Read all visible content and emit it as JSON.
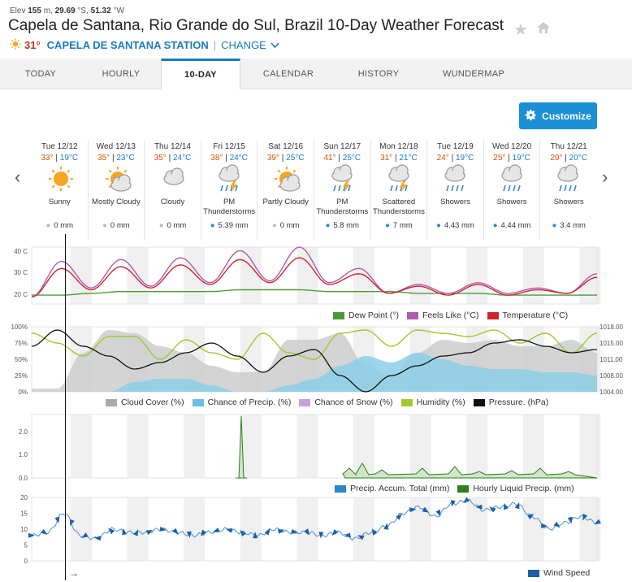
{
  "header": {
    "elev_prefix": "Elev",
    "elev_value": "155",
    "elev_unit": "m,",
    "lat": "29.69",
    "lat_unit": "°S,",
    "lon": "51.32",
    "lon_unit": "°W",
    "title": "Capela de Santana, Rio Grande do Sul, Brazil 10-Day Weather Forecast",
    "current_temp": "31°",
    "station": "Capela de Santana Station",
    "separator": "|",
    "change": "Change"
  },
  "tabs": [
    {
      "label": "Today"
    },
    {
      "label": "Hourly"
    },
    {
      "label": "10-Day"
    },
    {
      "label": "Calendar"
    },
    {
      "label": "History"
    },
    {
      "label": "Wundermap"
    }
  ],
  "customize_label": "Customize",
  "days": [
    {
      "name": "Tue 12/12",
      "hi": "33°",
      "lo": "19°C",
      "cond": "Sunny",
      "precip": "0 mm",
      "icon": "sun"
    },
    {
      "name": "Wed 12/13",
      "hi": "35°",
      "lo": "23°C",
      "cond": "Mostly Cloudy",
      "precip": "0 mm",
      "icon": "partly"
    },
    {
      "name": "Thu 12/14",
      "hi": "35°",
      "lo": "24°C",
      "cond": "Cloudy",
      "precip": "0 mm",
      "icon": "cloud"
    },
    {
      "name": "Fri 12/15",
      "hi": "38°",
      "lo": "24°C",
      "cond": "PM Thunderstorms",
      "precip": "5.39 mm",
      "icon": "storm"
    },
    {
      "name": "Sat 12/16",
      "hi": "39°",
      "lo": "25°C",
      "cond": "Partly Cloudy",
      "precip": "0 mm",
      "icon": "partly"
    },
    {
      "name": "Sun 12/17",
      "hi": "41°",
      "lo": "25°C",
      "cond": "PM Thunderstorms",
      "precip": "5.8 mm",
      "icon": "storm"
    },
    {
      "name": "Mon 12/18",
      "hi": "31°",
      "lo": "21°C",
      "cond": "Scattered Thunderstorms",
      "precip": "7 mm",
      "icon": "storm"
    },
    {
      "name": "Tue 12/19",
      "hi": "24°",
      "lo": "19°C",
      "cond": "Showers",
      "precip": "4.43 mm",
      "icon": "rain"
    },
    {
      "name": "Wed 12/20",
      "hi": "25°",
      "lo": "19°C",
      "cond": "Showers",
      "precip": "4.44 mm",
      "icon": "rain"
    },
    {
      "name": "Thu 12/21",
      "hi": "29°",
      "lo": "20°C",
      "cond": "Showers",
      "precip": "3.4 mm",
      "icon": "rain"
    }
  ],
  "hi_lo_sep": "|",
  "colors": {
    "accent": "#1a7bbf",
    "temperature": "#d0252d",
    "feels_like": "#b05ab0",
    "dew_point": "#4a9a3c",
    "cloud_cover": "#bbbbbb",
    "precip_chance": "#6bbfe0",
    "humidity": "#9ccc2c",
    "pressure": "#111111",
    "hourly_precip": "#2e7d1e",
    "wind": "#1c5fa8"
  },
  "chart_data": [
    {
      "type": "line",
      "ylabel_ticks": [
        "40 C",
        "30 C",
        "20 C"
      ],
      "ylim": [
        14,
        46
      ],
      "series": [
        {
          "name": "Dew Point (°)",
          "values": [
            19,
            19,
            20,
            21,
            21,
            21,
            21,
            22,
            22,
            22,
            21,
            21,
            21,
            20,
            20,
            20,
            19,
            19,
            19,
            19
          ]
        },
        {
          "name": "Feels Like (°C)",
          "values": [
            18,
            38,
            23,
            39,
            24,
            40,
            26,
            44,
            27,
            46,
            26,
            34,
            20,
            25,
            20,
            26,
            20,
            23,
            20,
            31
          ]
        },
        {
          "name": "Temperature (°C)",
          "values": [
            18,
            34,
            22,
            35,
            23,
            36,
            25,
            39,
            26,
            40,
            25,
            31,
            20,
            24,
            19,
            25,
            19,
            22,
            20,
            29
          ]
        }
      ]
    },
    {
      "type": "area",
      "ylabel_ticks": [
        "100%",
        "75%",
        "50%",
        "25%",
        "0%"
      ],
      "y2label_ticks": [
        "1018.00",
        "1015.00",
        "1011.00",
        "1008.00",
        "1004.00"
      ],
      "series": [
        {
          "name": "Cloud Cover (%)"
        },
        {
          "name": "Chance of Precip. (%)"
        },
        {
          "name": "Chance of Snow (%)"
        },
        {
          "name": "Humidity (%)"
        },
        {
          "name": "Pressure. (hPa)"
        }
      ]
    },
    {
      "type": "area",
      "ylabel_ticks": [
        "2.0",
        "1.0",
        "0.0"
      ],
      "series": [
        {
          "name": "Precip. Accum. Total (mm)"
        },
        {
          "name": "Hourly Liquid Precip. (mm)"
        }
      ]
    },
    {
      "type": "line",
      "ylabel_ticks": [
        "20",
        "15",
        "10",
        "5",
        "0"
      ],
      "ylim": [
        0,
        20
      ],
      "series": [
        {
          "name": "Wind Speed",
          "values": [
            8,
            9,
            15,
            8,
            7,
            10,
            9,
            9,
            10,
            9,
            8,
            9,
            10,
            9,
            8,
            10,
            9,
            9,
            8,
            9,
            7,
            9,
            11,
            15,
            17,
            14,
            18,
            19,
            16,
            17,
            18,
            14,
            10,
            12,
            14,
            12
          ]
        }
      ]
    }
  ],
  "now_arrow": "→"
}
